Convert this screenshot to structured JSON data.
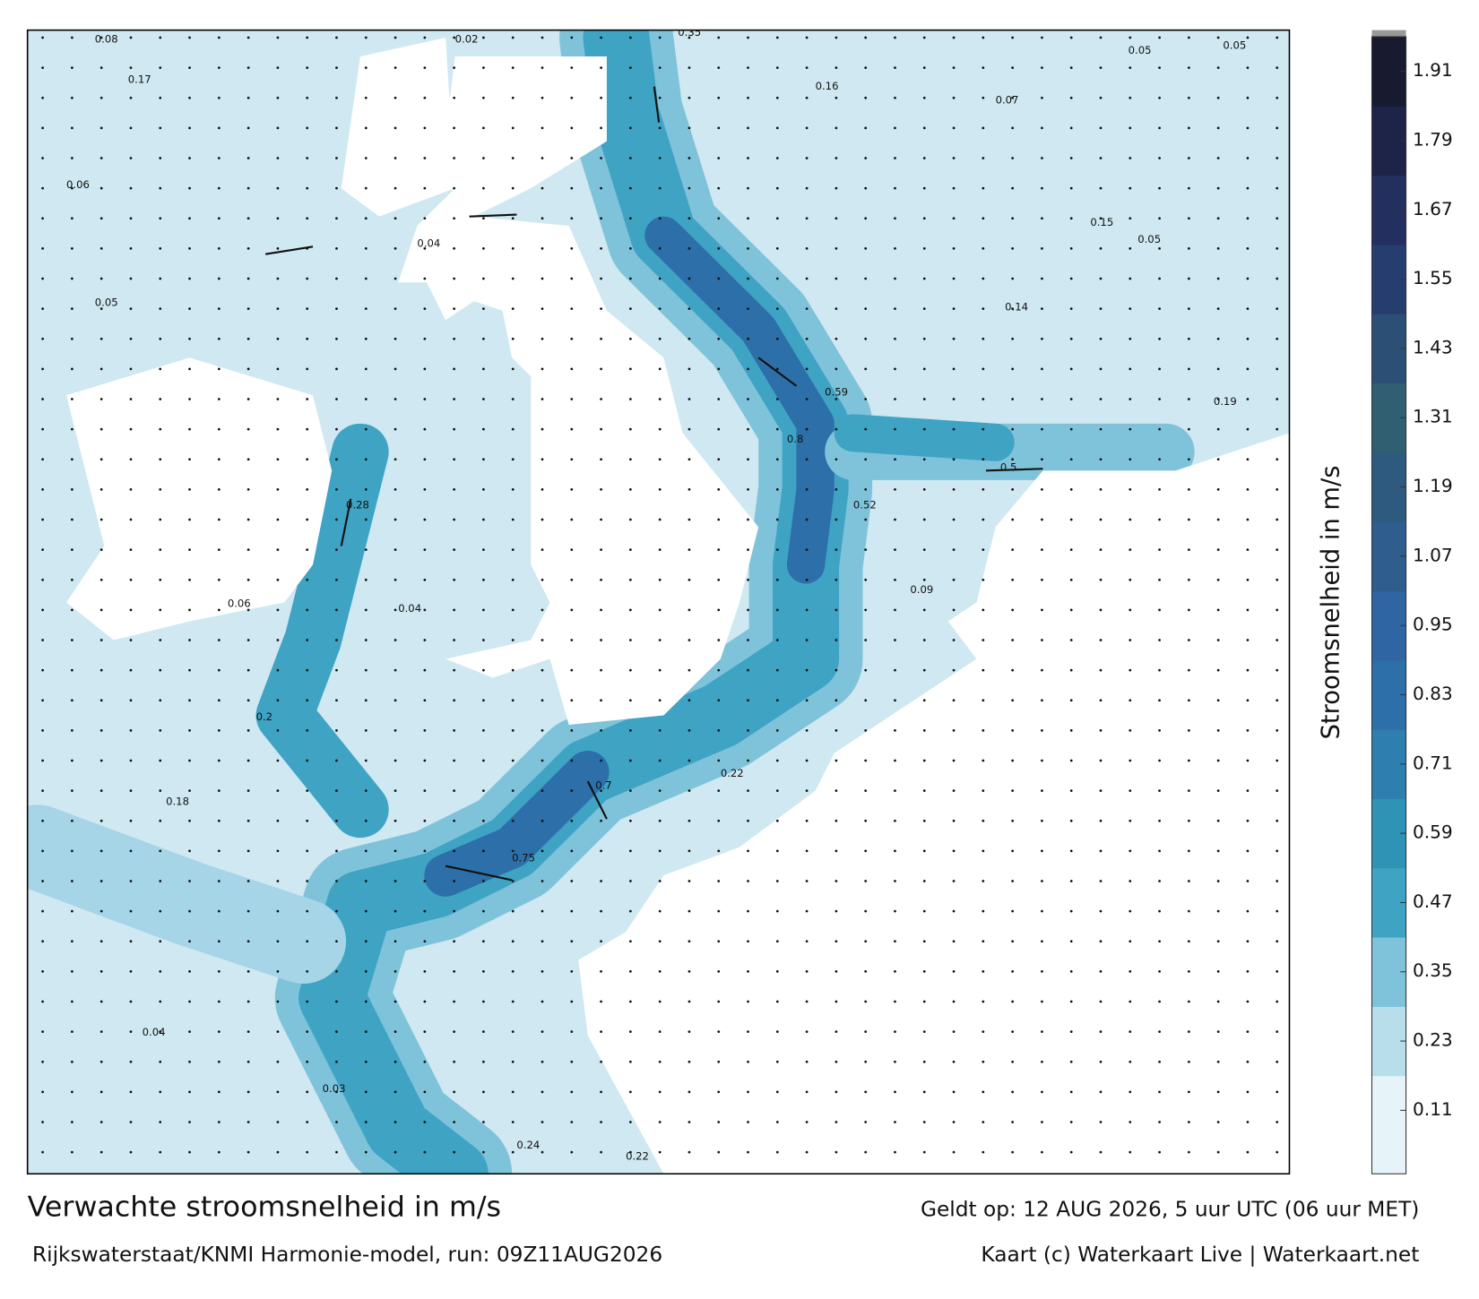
{
  "title": "Verwachte stroomsnelheid in m/s",
  "valid_time": "Geldt op: 12 AUG 2026, 5 uur UTC (06 uur MET)",
  "source": "Rijkswaterstaat/KNMI Harmonie-model, run: 09Z11AUG2026",
  "credit": "Kaart (c) Waterkaart Live | Waterkaart.net",
  "colorbar": {
    "label": "Stroomsnelheid in m/s",
    "clim": [
      0,
      1.97
    ],
    "ticks": [
      0.11,
      0.23,
      0.35,
      0.47,
      0.59,
      0.71,
      0.83,
      0.95,
      1.07,
      1.19,
      1.31,
      1.43,
      1.55,
      1.67,
      1.79,
      1.91
    ],
    "colors": [
      "#e6f3f8",
      "#b9deeb",
      "#7fc3da",
      "#3fa3c4",
      "#2f93b6",
      "#2e7fb0",
      "#2d6fa8",
      "#2f65a3",
      "#2f5e8e",
      "#2e5a80",
      "#2f5f70",
      "#2c4f76",
      "#263e6f",
      "#232f5e",
      "#1e2448",
      "#181a30"
    ]
  },
  "map_labels": [
    0.08,
    0.02,
    0.35,
    0.05,
    0.05,
    0.17,
    0.16,
    0.07,
    0.06,
    0.04,
    0.15,
    0.05,
    0.05,
    0.14,
    0.19,
    0.59,
    0.8,
    0.52,
    0.5,
    0.28,
    0.04,
    0.06,
    0.2,
    0.18,
    0.75,
    0.7,
    0.22,
    0.09,
    0.04,
    0.03,
    0.24,
    0.22
  ]
}
